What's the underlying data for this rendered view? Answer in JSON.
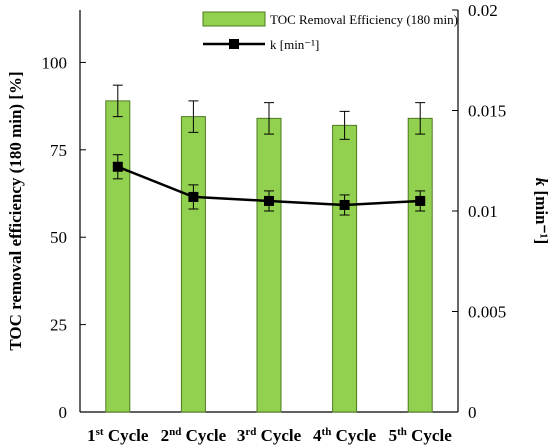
{
  "chart_data": {
    "type": "bar",
    "categories": [
      "1st Cycle",
      "2nd Cycle",
      "3rd Cycle",
      "4th Cycle",
      "5th Cycle"
    ],
    "category_parts": [
      {
        "num": "1",
        "sup": "st",
        "rest": " Cycle"
      },
      {
        "num": "2",
        "sup": "nd",
        "rest": " Cycle"
      },
      {
        "num": "3",
        "sup": "rd",
        "rest": " Cycle"
      },
      {
        "num": "4",
        "sup": "th",
        "rest": " Cycle"
      },
      {
        "num": "5",
        "sup": "th",
        "rest": " Cycle"
      }
    ],
    "series": [
      {
        "name": "TOC Removal Efficiency (180 min)",
        "type": "bar",
        "axis": "left",
        "values": [
          89,
          84.5,
          84,
          82,
          84
        ],
        "errors": [
          4.5,
          4.5,
          4.5,
          4,
          4.5
        ],
        "color": "#92d050"
      },
      {
        "name": "k [min⁻¹]",
        "type": "line",
        "axis": "right",
        "values": [
          0.0122,
          0.0107,
          0.0105,
          0.0103,
          0.0105
        ],
        "errors": [
          0.0006,
          0.0006,
          0.0005,
          0.0005,
          0.0005
        ],
        "color": "#000000"
      }
    ],
    "ylabel": "TOC removal efficiency (180 min) [%]",
    "y2label_italic": "k",
    "y2label_rest": " [min⁻¹]",
    "ylim": [
      0,
      115
    ],
    "y2lim": [
      0,
      0.02
    ],
    "yticks": [
      0,
      25,
      50,
      75,
      100
    ],
    "y2ticks": [
      0,
      0.005,
      0.01,
      0.015,
      0.02
    ],
    "y2tick_labels": [
      "0",
      "0.005",
      "0.01",
      "0.015",
      "0.02"
    ],
    "legend_position": "top-right",
    "grid": false
  }
}
